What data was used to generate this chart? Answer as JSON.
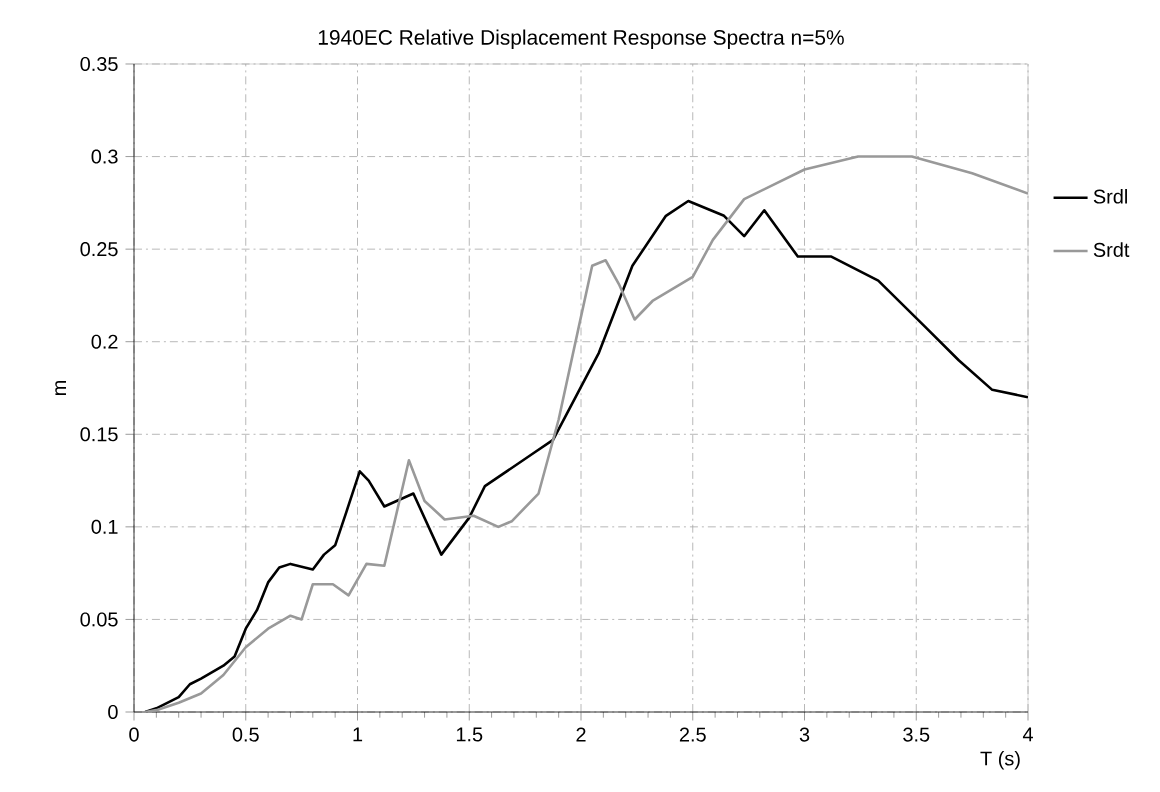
{
  "chart_data": {
    "type": "line",
    "title": "1940EC  Relative Displacement Response Spectra  n=5%",
    "xlabel": "T (s)",
    "ylabel": "m",
    "xlim": [
      0,
      4
    ],
    "ylim": [
      0,
      0.35
    ],
    "xticks": [
      0,
      0.5,
      1,
      1.5,
      2,
      2.5,
      3,
      3.5,
      4
    ],
    "yticks": [
      0,
      0.05,
      0.1,
      0.15,
      0.2,
      0.25,
      0.3,
      0.35
    ],
    "grid": true,
    "legend": "right",
    "marker": "none",
    "line_style": "solid",
    "series": [
      {
        "name": "Srdl",
        "color": "#000000",
        "x": [
          0.05,
          0.1,
          0.2,
          0.25,
          0.3,
          0.4,
          0.45,
          0.5,
          0.55,
          0.6,
          0.65,
          0.7,
          0.8,
          0.85,
          0.9,
          0.95,
          1.01,
          1.05,
          1.12,
          1.25,
          1.375,
          1.5,
          1.57,
          1.79,
          1.875,
          2.08,
          2.23,
          2.38,
          2.48,
          2.64,
          2.73,
          2.82,
          2.97,
          3.12,
          3.33,
          3.54,
          3.69,
          3.84,
          4.0
        ],
        "values": [
          0,
          0.002,
          0.008,
          0.015,
          0.018,
          0.025,
          0.03,
          0.045,
          0.055,
          0.07,
          0.078,
          0.08,
          0.077,
          0.085,
          0.09,
          0.108,
          0.13,
          0.125,
          0.111,
          0.118,
          0.085,
          0.105,
          0.122,
          0.14,
          0.147,
          0.194,
          0.241,
          0.268,
          0.276,
          0.268,
          0.257,
          0.271,
          0.246,
          0.246,
          0.233,
          0.208,
          0.19,
          0.174,
          0.17
        ]
      },
      {
        "name": "Srdt",
        "color": "#999999",
        "x": [
          0.05,
          0.1,
          0.2,
          0.3,
          0.4,
          0.5,
          0.6,
          0.7,
          0.75,
          0.8,
          0.89,
          0.96,
          1.04,
          1.12,
          1.23,
          1.3,
          1.39,
          1.52,
          1.63,
          1.69,
          1.81,
          1.9,
          1.99,
          2.05,
          2.11,
          2.17,
          2.24,
          2.32,
          2.5,
          2.59,
          2.73,
          3.0,
          3.24,
          3.48,
          3.75,
          4.0
        ],
        "values": [
          0,
          0.001,
          0.005,
          0.01,
          0.02,
          0.035,
          0.045,
          0.052,
          0.05,
          0.069,
          0.069,
          0.063,
          0.08,
          0.079,
          0.136,
          0.114,
          0.104,
          0.106,
          0.1,
          0.103,
          0.118,
          0.158,
          0.208,
          0.241,
          0.244,
          0.231,
          0.212,
          0.222,
          0.235,
          0.255,
          0.277,
          0.293,
          0.3,
          0.3,
          0.291,
          0.28
        ]
      }
    ]
  }
}
